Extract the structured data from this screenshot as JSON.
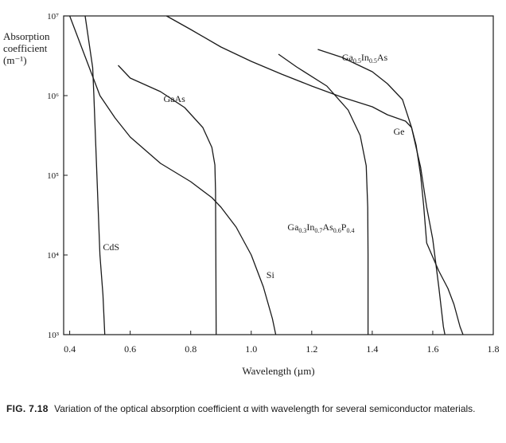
{
  "chart_data": {
    "type": "line",
    "title": "",
    "xlabel": "Wavelength (µm)",
    "ylabel_lines": [
      "Absorption",
      "coefficient",
      "(m⁻¹)"
    ],
    "xlim": [
      0.38,
      1.8
    ],
    "ylim_log10": [
      3,
      7
    ],
    "y_scale": "log",
    "x_ticks": [
      {
        "value": 0.4,
        "label": "0.4"
      },
      {
        "value": 0.6,
        "label": "0.6"
      },
      {
        "value": 0.8,
        "label": "0.8"
      },
      {
        "value": 1.0,
        "label": "1.0"
      },
      {
        "value": 1.2,
        "label": "1.2"
      },
      {
        "value": 1.4,
        "label": "1.4"
      },
      {
        "value": 1.6,
        "label": "1.6"
      },
      {
        "value": 1.8,
        "label": "1.8"
      }
    ],
    "y_ticks": [
      {
        "exp": 3,
        "label": "10³"
      },
      {
        "exp": 4,
        "label": "10⁴"
      },
      {
        "exp": 5,
        "label": "10⁵"
      },
      {
        "exp": 6,
        "label": "10⁶"
      },
      {
        "exp": 7,
        "label": "10⁷"
      }
    ],
    "grid": false,
    "series": [
      {
        "name": "CdS",
        "label_at": {
          "x": 0.51,
          "exp": 4.1
        },
        "points": [
          [
            0.451,
            7.0
          ],
          [
            0.476,
            6.35
          ],
          [
            0.48,
            6.0
          ],
          [
            0.49,
            5.0
          ],
          [
            0.5,
            4.0
          ],
          [
            0.51,
            3.5
          ],
          [
            0.516,
            3.0
          ]
        ]
      },
      {
        "name": "GaAs",
        "label_at": {
          "x": 0.71,
          "exp": 5.96
        },
        "points": [
          [
            0.56,
            6.38
          ],
          [
            0.6,
            6.22
          ],
          [
            0.7,
            6.05
          ],
          [
            0.78,
            5.85
          ],
          [
            0.84,
            5.6
          ],
          [
            0.87,
            5.35
          ],
          [
            0.88,
            5.13
          ],
          [
            0.882,
            4.8
          ],
          [
            0.883,
            4.0
          ],
          [
            0.884,
            3.0
          ]
        ]
      },
      {
        "name": "Si",
        "label_at": {
          "x": 1.05,
          "exp": 3.75
        },
        "points": [
          [
            0.4,
            7.0
          ],
          [
            0.45,
            6.5
          ],
          [
            0.5,
            6.0
          ],
          [
            0.55,
            5.72
          ],
          [
            0.6,
            5.48
          ],
          [
            0.7,
            5.15
          ],
          [
            0.8,
            4.92
          ],
          [
            0.87,
            4.72
          ],
          [
            0.9,
            4.6
          ],
          [
            0.95,
            4.35
          ],
          [
            1.0,
            4.0
          ],
          [
            1.04,
            3.6
          ],
          [
            1.07,
            3.2
          ],
          [
            1.081,
            3.0
          ]
        ]
      },
      {
        "name": "Ge",
        "label_at": {
          "x": 1.47,
          "exp": 5.55
        },
        "points": [
          [
            0.72,
            7.0
          ],
          [
            0.8,
            6.83
          ],
          [
            0.9,
            6.61
          ],
          [
            1.0,
            6.43
          ],
          [
            1.1,
            6.27
          ],
          [
            1.2,
            6.12
          ],
          [
            1.3,
            5.98
          ],
          [
            1.4,
            5.86
          ],
          [
            1.45,
            5.76
          ],
          [
            1.51,
            5.68
          ],
          [
            1.53,
            5.6
          ],
          [
            1.545,
            5.38
          ],
          [
            1.56,
            5.0
          ],
          [
            1.57,
            4.62
          ],
          [
            1.58,
            4.15
          ],
          [
            1.62,
            3.8
          ],
          [
            1.65,
            3.58
          ],
          [
            1.67,
            3.38
          ],
          [
            1.69,
            3.1
          ],
          [
            1.7,
            3.0
          ]
        ]
      },
      {
        "name": "Ga0.3In0.7As0.6P0.4",
        "label_at": {
          "x": 1.12,
          "exp": 4.35
        },
        "points": [
          [
            1.09,
            6.52
          ],
          [
            1.15,
            6.36
          ],
          [
            1.25,
            6.12
          ],
          [
            1.32,
            5.82
          ],
          [
            1.36,
            5.5
          ],
          [
            1.38,
            5.12
          ],
          [
            1.385,
            4.6
          ],
          [
            1.386,
            4.0
          ],
          [
            1.386,
            3.0
          ]
        ]
      },
      {
        "name": "Ga0.5In0.5As",
        "label_at": {
          "x": 1.3,
          "exp": 6.48
        },
        "points": [
          [
            1.22,
            6.58
          ],
          [
            1.3,
            6.48
          ],
          [
            1.4,
            6.3
          ],
          [
            1.45,
            6.15
          ],
          [
            1.5,
            5.95
          ],
          [
            1.53,
            5.6
          ],
          [
            1.56,
            5.1
          ],
          [
            1.58,
            4.6
          ],
          [
            1.6,
            4.2
          ],
          [
            1.62,
            3.6
          ],
          [
            1.635,
            3.1
          ],
          [
            1.64,
            3.0
          ]
        ]
      }
    ]
  },
  "caption": {
    "figure_label": "FIG. 7.18",
    "text": "Variation of the optical absorption coefficient α with wavelength for several semiconductor materials."
  }
}
